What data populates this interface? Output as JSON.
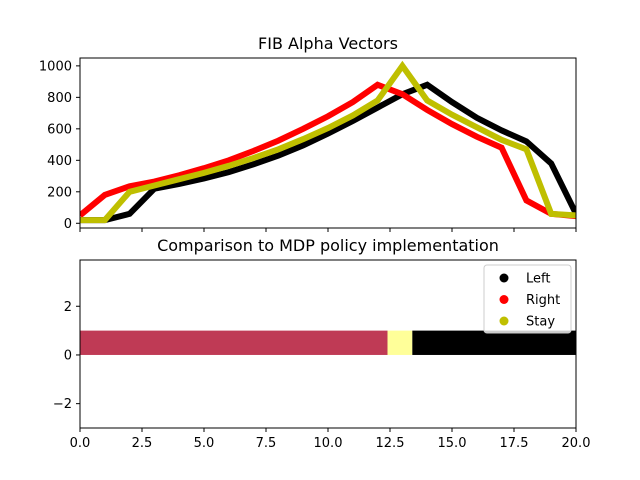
{
  "chart_data": [
    {
      "type": "line",
      "title": "FIB Alpha Vectors",
      "xlabel": "",
      "ylabel": "",
      "xlim": [
        0,
        20
      ],
      "ylim": [
        -30,
        1050
      ],
      "yticks": [
        0,
        200,
        400,
        600,
        800,
        1000
      ],
      "x_tick_labels_visible": false,
      "grid": false,
      "series": [
        {
          "color": "#000000",
          "x": [
            0,
            1,
            2,
            3,
            4,
            5,
            6,
            7,
            8,
            9,
            10,
            11,
            12,
            13,
            14,
            15,
            16,
            17,
            18,
            19,
            20
          ],
          "values": [
            20,
            20,
            60,
            220,
            250,
            285,
            325,
            375,
            430,
            495,
            570,
            650,
            735,
            820,
            880,
            770,
            670,
            590,
            520,
            380,
            60
          ]
        },
        {
          "color": "#ff0000",
          "x": [
            0,
            1,
            2,
            3,
            4,
            5,
            6,
            7,
            8,
            9,
            10,
            11,
            12,
            13,
            14,
            15,
            16,
            17,
            18,
            19,
            20
          ],
          "values": [
            50,
            180,
            235,
            265,
            305,
            350,
            400,
            460,
            525,
            600,
            680,
            770,
            880,
            820,
            720,
            630,
            550,
            480,
            145,
            60,
            45
          ]
        },
        {
          "color": "#bfbf00",
          "x": [
            0,
            1,
            2,
            3,
            4,
            5,
            6,
            7,
            8,
            9,
            10,
            11,
            12,
            13,
            14,
            15,
            16,
            17,
            18,
            19,
            20
          ],
          "values": [
            20,
            20,
            200,
            240,
            280,
            320,
            365,
            415,
            470,
            535,
            605,
            685,
            780,
            1000,
            780,
            690,
            610,
            530,
            470,
            60,
            50
          ]
        }
      ]
    },
    {
      "type": "bar",
      "title": "Comparison to MDP policy implementation",
      "xlabel": "",
      "ylabel": "",
      "xlim": [
        0,
        20
      ],
      "ylim": [
        -3,
        3.9
      ],
      "xticks": [
        0.0,
        2.5,
        5.0,
        7.5,
        10.0,
        12.5,
        15.0,
        17.5,
        20.0
      ],
      "xtick_labels": [
        "0.0",
        "2.5",
        "5.0",
        "7.5",
        "10.0",
        "12.5",
        "15.0",
        "17.5",
        "20.0"
      ],
      "yticks": [
        -2,
        0,
        2
      ],
      "grid": false,
      "segments": [
        {
          "start": 0,
          "end": 12.4,
          "color": "#bf3a55"
        },
        {
          "start": 12.4,
          "end": 13.4,
          "color": "#ffff99"
        },
        {
          "start": 13.4,
          "end": 20,
          "color": "#000000"
        }
      ],
      "bar_y": [
        0,
        1
      ],
      "legend": {
        "placement": "upper right",
        "entries": [
          {
            "label": "Left",
            "color": "#000000"
          },
          {
            "label": "Right",
            "color": "#ff0000"
          },
          {
            "label": "Stay",
            "color": "#bfbf00"
          }
        ]
      }
    }
  ]
}
